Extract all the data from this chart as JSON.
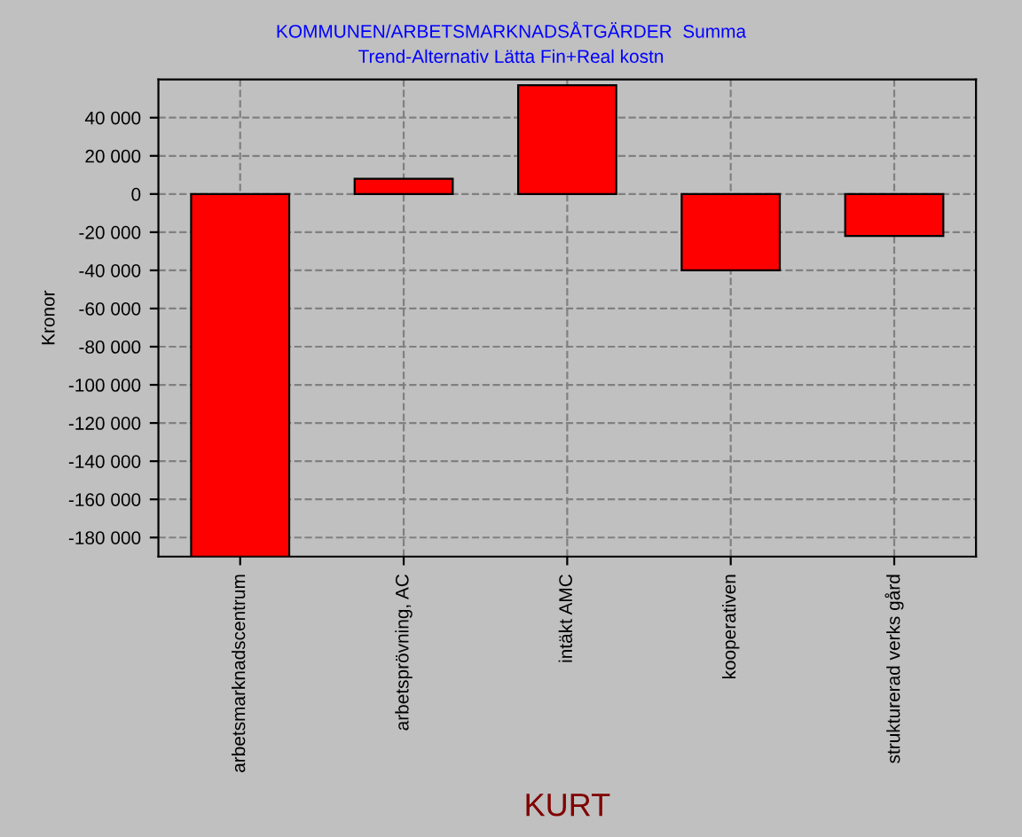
{
  "chart_data": {
    "type": "bar",
    "title": "KOMMUNEN/ARBETSMARKNADSÅTGÄRDER  Summa",
    "subtitle": "Trend-Alternativ Lätta Fin+Real kostn",
    "xlabel": "KURT",
    "ylabel": "Kronor",
    "categories": [
      "arbetsmarknadscentrum",
      "arbetsprövning, AC",
      "intäkt AMC",
      "kooperativen",
      "strukturerad verks gård"
    ],
    "values": [
      -190000,
      8000,
      57000,
      -40000,
      -22000
    ],
    "color": "#ff0000",
    "ylim": [
      -190000,
      60000
    ],
    "yticks": [
      {
        "value": -180000,
        "label": "-180 000"
      },
      {
        "value": -160000,
        "label": "-160 000"
      },
      {
        "value": -140000,
        "label": "-140 000"
      },
      {
        "value": -120000,
        "label": "-120 000"
      },
      {
        "value": -100000,
        "label": "-100 000"
      },
      {
        "value": -80000,
        "label": "-80 000"
      },
      {
        "value": -60000,
        "label": "-60 000"
      },
      {
        "value": -40000,
        "label": "-40 000"
      },
      {
        "value": -20000,
        "label": "-20 000"
      },
      {
        "value": 0,
        "label": "0"
      },
      {
        "value": 20000,
        "label": "20 000"
      },
      {
        "value": 40000,
        "label": "40 000"
      }
    ],
    "grid": true,
    "legend": false
  }
}
